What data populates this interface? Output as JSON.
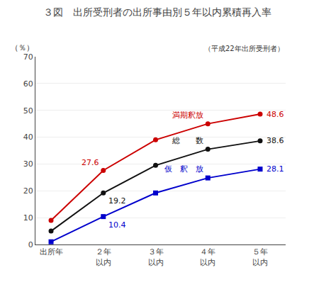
{
  "chart_data": {
    "type": "line",
    "title": "３図　出所受刑者の出所事由別５年以内累積再入率",
    "subtitle": "（平成22年出所受刑者）",
    "y_label": "（％）",
    "categories": [
      "出所年",
      "２年\n以内",
      "３年\n以内",
      "４年\n以内",
      "５年\n以内"
    ],
    "series": [
      {
        "name": "満期釈放",
        "color": "#cc0000",
        "marker": "circle",
        "values": [
          9.0,
          27.6,
          39.0,
          45.0,
          48.6
        ],
        "value_labels": [
          null,
          "27.6",
          null,
          null,
          "48.6"
        ]
      },
      {
        "name": "総　　数",
        "color": "#111111",
        "marker": "circle",
        "values": [
          5.0,
          19.2,
          29.5,
          35.5,
          38.6
        ],
        "value_labels": [
          null,
          "19.2",
          null,
          null,
          "38.6"
        ]
      },
      {
        "name": "仮　釈　放",
        "color": "#0000cc",
        "marker": "square",
        "values": [
          1.0,
          10.4,
          19.2,
          24.8,
          28.1
        ],
        "value_labels": [
          null,
          "10.4",
          null,
          null,
          "28.1"
        ]
      }
    ],
    "ylim": [
      0,
      70
    ],
    "yticks": [
      0,
      10,
      20,
      30,
      40,
      50,
      60,
      70
    ],
    "grid": true,
    "data_labels": true
  }
}
